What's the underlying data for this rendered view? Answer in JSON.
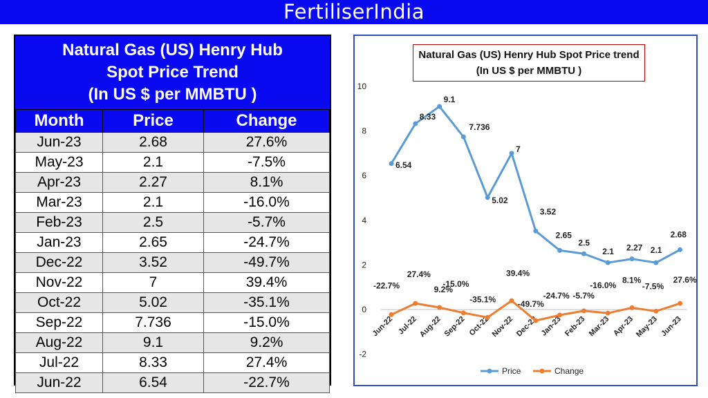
{
  "banner": {
    "title": "FertiliserIndia"
  },
  "table": {
    "title_lines": [
      "Natural Gas (US) Henry Hub",
      "Spot Price Trend",
      "(In US $ per MMBTU )"
    ],
    "headers": [
      "Month",
      "Price",
      "Change"
    ],
    "rows": [
      [
        "Jun-23",
        "2.68",
        "27.6%"
      ],
      [
        "May-23",
        "2.1",
        "-7.5%"
      ],
      [
        "Apr-23",
        "2.27",
        "8.1%"
      ],
      [
        "Mar-23",
        "2.1",
        "-16.0%"
      ],
      [
        "Feb-23",
        "2.5",
        "-5.7%"
      ],
      [
        "Jan-23",
        "2.65",
        "-24.7%"
      ],
      [
        "Dec-22",
        "3.52",
        "-49.7%"
      ],
      [
        "Nov-22",
        "7",
        "39.4%"
      ],
      [
        "Oct-22",
        "5.02",
        "-35.1%"
      ],
      [
        "Sep-22",
        "7.736",
        "-15.0%"
      ],
      [
        "Aug-22",
        "9.1",
        "9.2%"
      ],
      [
        "Jul-22",
        "8.33",
        "27.4%"
      ],
      [
        "Jun-22",
        "6.54",
        "-22.7%"
      ]
    ]
  },
  "chart_data": {
    "type": "line",
    "title_lines": [
      "Natural Gas (US) Henry Hub Spot Price trend",
      "(In US $ per MMBTU )"
    ],
    "categories": [
      "Jun-22",
      "Jul-22",
      "Aug-22",
      "Sep-22",
      "Oct-22",
      "Nov-22",
      "Dec-22",
      "Jan-23",
      "Feb-23",
      "Mar-23",
      "Apr-23",
      "May-23",
      "Jun-23"
    ],
    "ylim": [
      -2,
      10
    ],
    "yticks": [
      -2,
      0,
      2,
      4,
      6,
      8,
      10
    ],
    "grid": false,
    "legend_position": "bottom",
    "series": [
      {
        "name": "Price",
        "color": "#5b9bd5",
        "values": [
          6.54,
          8.33,
          9.1,
          7.736,
          5.02,
          7,
          3.52,
          2.65,
          2.5,
          2.1,
          2.27,
          2.1,
          2.68
        ],
        "labels": [
          "6.54",
          "8.33",
          "9.1",
          "7.736",
          "5.02",
          "7",
          "3.52",
          "2.65",
          "2.5",
          "2.1",
          "2.27",
          "2.1",
          "2.68"
        ]
      },
      {
        "name": "Change",
        "color": "#ed7d31",
        "values": [
          -0.227,
          0.274,
          0.092,
          -0.15,
          -0.351,
          0.394,
          -0.497,
          -0.247,
          -0.057,
          -0.16,
          0.081,
          -0.075,
          0.276
        ],
        "labels": [
          "-22.7%",
          "27.4%",
          "9.2%",
          "-15.0%",
          "-35.1%",
          "39.4%",
          "-49.7%",
          "-24.7%",
          "-5.7%",
          "-16.0%",
          "8.1%",
          "-7.5%",
          "27.6%"
        ]
      }
    ]
  }
}
